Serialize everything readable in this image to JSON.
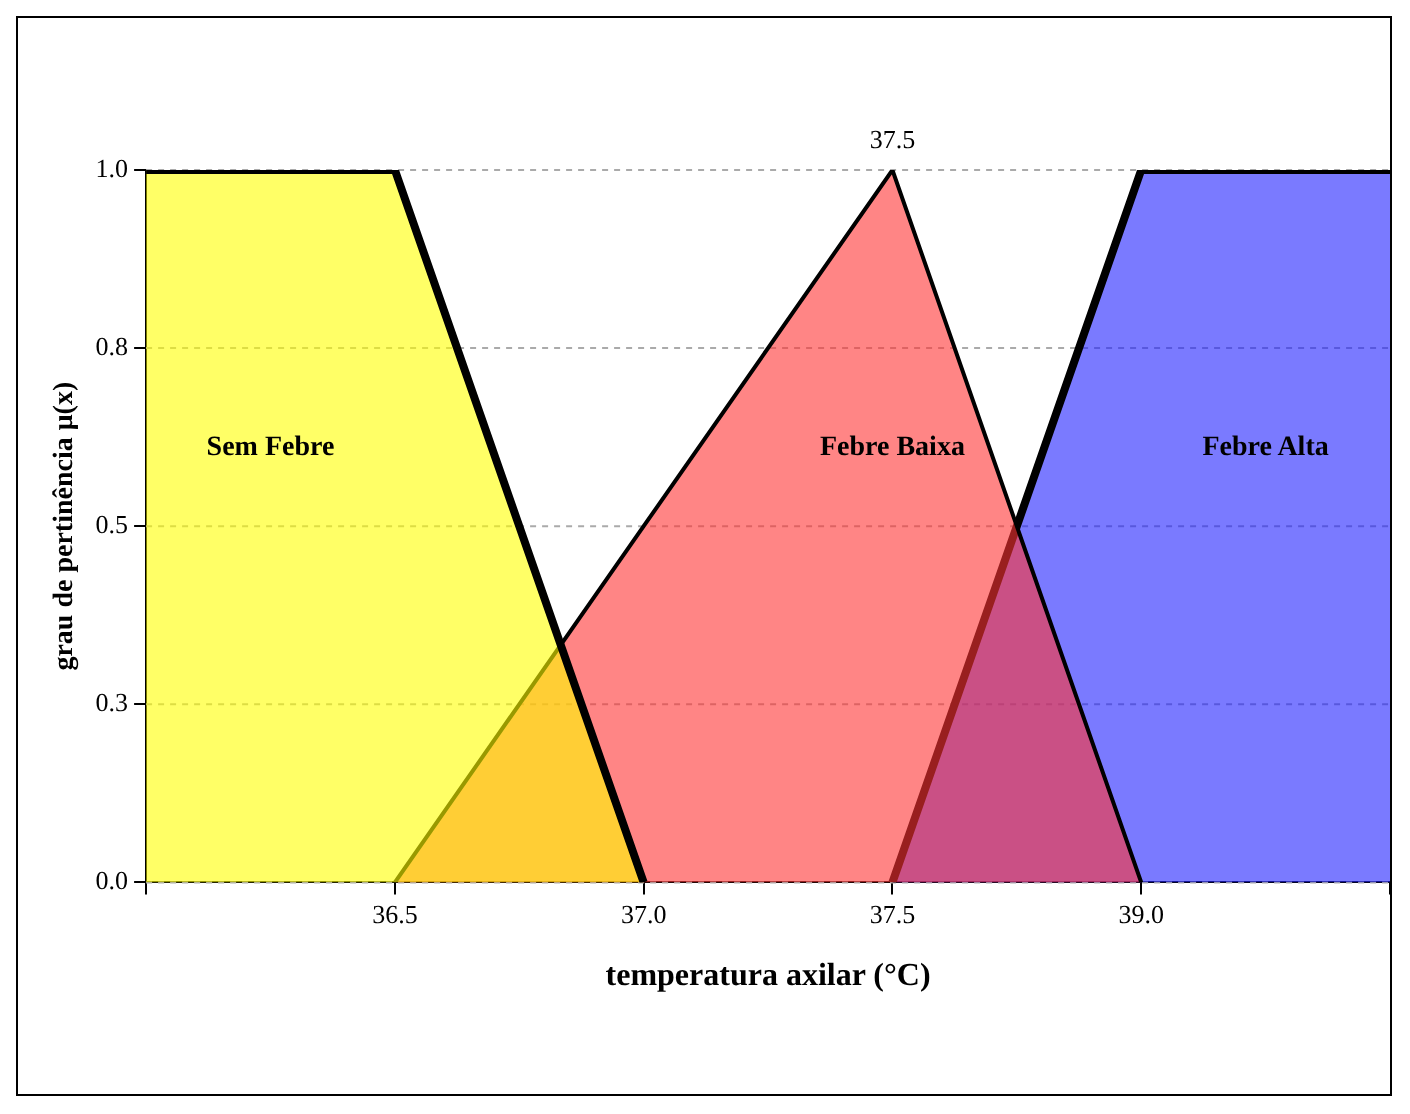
{
  "chart_data": {
    "type": "area",
    "xlabel": "temperatura axilar (°C)",
    "ylabel": "grau de pertinência μ(x)",
    "categories": [
      null,
      "36.5",
      "37.0",
      "37.5",
      "39.0",
      null
    ],
    "ylim": [
      0,
      1
    ],
    "yticks": [
      {
        "value": 0,
        "label": "0.0"
      },
      {
        "value": 0.25,
        "label": "0.3"
      },
      {
        "value": 0.5,
        "label": "0.5"
      },
      {
        "value": 0.75,
        "label": "0.8"
      },
      {
        "value": 1,
        "label": "1.0"
      }
    ],
    "grid": "y",
    "legend": false,
    "series": [
      {
        "name": "Sem Febre",
        "color": "#ffff00",
        "values": [
          1,
          1,
          0,
          null,
          null,
          null
        ]
      },
      {
        "name": "Febre Baixa",
        "color": "#ff3333",
        "values": [
          null,
          0,
          0.5,
          1,
          0,
          null
        ]
      },
      {
        "name": "Febre Alta",
        "color": "#2222ff",
        "values": [
          null,
          null,
          null,
          0,
          1,
          1
        ]
      }
    ],
    "annotations": [
      {
        "text": "37.5",
        "x": "37.5",
        "y": 1
      }
    ]
  }
}
